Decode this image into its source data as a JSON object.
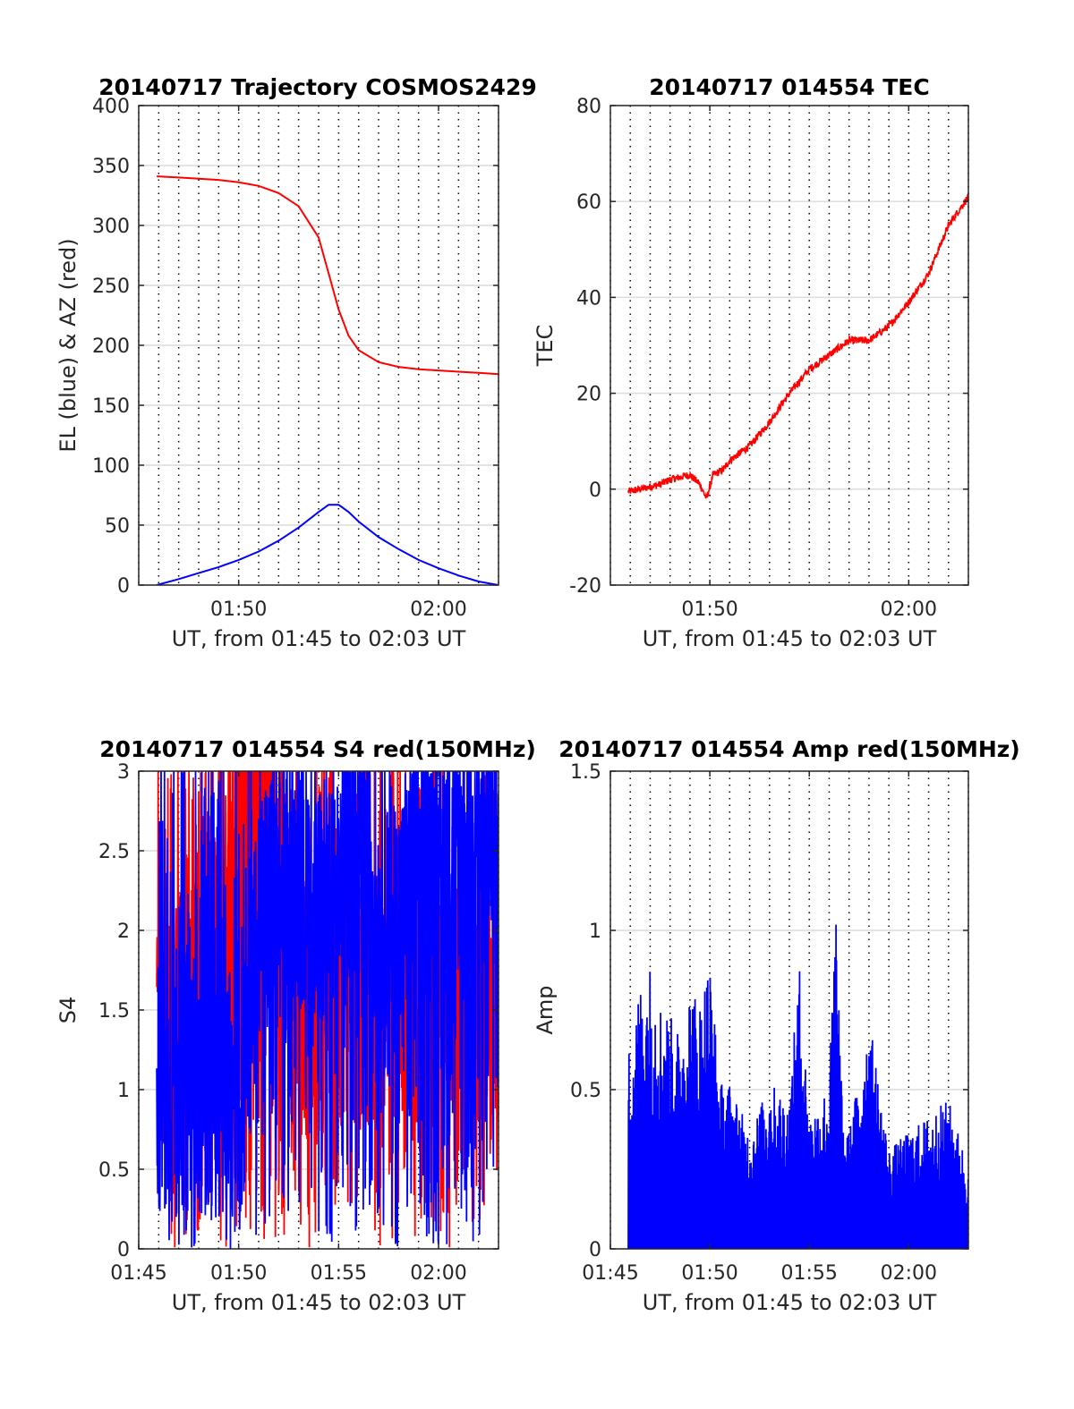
{
  "figure": {
    "background": "#ffffff"
  },
  "chart_data": [
    {
      "type": "line",
      "title": "20140717 Trajectory COSMOS2429",
      "xlabel": "UT, from 01:45 to 02:03 UT",
      "ylabel": "EL (blue) & AZ (red)",
      "xlim": [
        "01:45",
        "02:03"
      ],
      "ylim": [
        0,
        400
      ],
      "xticks": [
        "01:50",
        "02:00"
      ],
      "yticks": [
        "0",
        "50",
        "100",
        "150",
        "200",
        "250",
        "300",
        "350",
        "400"
      ],
      "grid": true,
      "series": [
        {
          "color": "#ff0000",
          "x": [
            "01:45:54",
            "01:47",
            "01:48",
            "01:49",
            "01:50",
            "01:51",
            "01:52",
            "01:53",
            "01:54",
            "01:54:30",
            "01:55",
            "01:55:30",
            "01:56",
            "01:57",
            "01:58",
            "01:59",
            "02:00",
            "02:01",
            "02:02",
            "02:03"
          ],
          "values": [
            341,
            340,
            339,
            338,
            336,
            333,
            327,
            316,
            290,
            260,
            230,
            208,
            196,
            186,
            182,
            180,
            179,
            178,
            177,
            176
          ]
        },
        {
          "color": "#0000ff",
          "x": [
            "01:45:54",
            "01:47",
            "01:48",
            "01:49",
            "01:50",
            "01:51",
            "01:52",
            "01:53",
            "01:54",
            "01:54:30",
            "01:55",
            "01:55:30",
            "01:56",
            "01:57",
            "01:58",
            "01:59",
            "02:00",
            "02:01",
            "02:02",
            "02:03"
          ],
          "values": [
            0,
            5,
            10,
            15,
            21,
            28,
            37,
            48,
            61,
            67,
            67,
            61,
            53,
            40,
            30,
            21,
            14,
            8,
            3,
            0
          ]
        }
      ]
    },
    {
      "type": "line",
      "title": "20140717 014554 TEC",
      "xlabel": "UT, from 01:45 to 02:03 UT",
      "ylabel": "TEC",
      "xlim": [
        "01:45",
        "02:03"
      ],
      "ylim": [
        -20,
        80
      ],
      "xticks": [
        "01:50",
        "02:00"
      ],
      "yticks": [
        "-20",
        "0",
        "20",
        "40",
        "60",
        "80"
      ],
      "grid": true,
      "series": [
        {
          "color": "#ff0000",
          "x": [
            "01:45:54",
            "01:46:30",
            "01:47",
            "01:47:30",
            "01:48",
            "01:48:30",
            "01:49",
            "01:49:30",
            "01:49:50",
            "01:50:10",
            "01:50:40",
            "01:51",
            "01:52",
            "01:53",
            "01:54",
            "01:55",
            "01:56",
            "01:57",
            "01:58",
            "01:59",
            "02:00",
            "02:01",
            "02:02",
            "02:03"
          ],
          "values": [
            -0.5,
            0,
            0.5,
            1,
            2,
            2.5,
            3,
            1,
            -2,
            3,
            4,
            6,
            9,
            14,
            20,
            25,
            28,
            31,
            31,
            34,
            39,
            45,
            55,
            61
          ]
        }
      ]
    },
    {
      "type": "line",
      "title": "20140717 014554 S4 red(150MHz)",
      "xlabel": "UT, from 01:45 to 02:03 UT",
      "ylabel": "S4",
      "xlim": [
        "01:45",
        "02:03"
      ],
      "ylim": [
        0,
        3
      ],
      "xticks": [
        "01:45",
        "01:50",
        "01:55",
        "02:00"
      ],
      "yticks": [
        "0",
        "0.5",
        "1",
        "1.5",
        "2",
        "2.5",
        "3"
      ],
      "grid": true,
      "series": [
        {
          "color": "#ff0000",
          "x": [
            "01:45:54",
            "01:46:30",
            "01:47",
            "01:47:30",
            "01:48",
            "01:48:30",
            "01:49",
            "01:49:30",
            "01:50",
            "01:51",
            "01:52",
            "01:53",
            "01:54",
            "01:55",
            "01:56",
            "01:57",
            "01:58",
            "01:59",
            "02:00",
            "02:01",
            "02:02",
            "02:03"
          ],
          "values": [
            1.5,
            1.5,
            1.6,
            1.8,
            1.7,
            1.9,
            2.1,
            2.5,
            3,
            3,
            2.8,
            1.5,
            1.6,
            1.7,
            1.5,
            1.6,
            1.5,
            1.6,
            1.7,
            1.6,
            1.5,
            1.6
          ]
        },
        {
          "color": "#0000ff",
          "x": [
            "01:45:54",
            "01:46:30",
            "01:47",
            "01:47:30",
            "01:48",
            "01:48:30",
            "01:49",
            "01:49:30",
            "01:50",
            "01:51",
            "01:52",
            "01:53",
            "01:54",
            "01:55",
            "01:56",
            "01:57",
            "01:58",
            "01:59",
            "02:00",
            "02:01",
            "02:02",
            "02:03"
          ],
          "values": [
            1,
            1,
            1.05,
            1,
            1,
            0.95,
            1,
            0.9,
            0.8,
            2,
            2.5,
            2.3,
            2.2,
            2.4,
            2.6,
            2.2,
            2.0,
            2.5,
            2.6,
            2.7,
            2.7,
            2.8
          ]
        }
      ]
    },
    {
      "type": "line",
      "title": "20140717 014554 Amp red(150MHz)",
      "xlabel": "UT, from 01:45 to 02:03 UT",
      "ylabel": "Amp",
      "xlim": [
        "01:45",
        "02:03"
      ],
      "ylim": [
        0,
        1.5
      ],
      "xticks": [
        "01:45",
        "01:50",
        "01:55",
        "02:00"
      ],
      "yticks": [
        "0",
        "0.5",
        "1",
        "1.5"
      ],
      "grid": true,
      "series": [
        {
          "color": "#0000ff",
          "x": [
            "01:45:54",
            "01:46:30",
            "01:47",
            "01:47:30",
            "01:48",
            "01:48:30",
            "01:49",
            "01:49:30",
            "01:50",
            "01:50:30",
            "01:51",
            "01:52",
            "01:53",
            "01:54",
            "01:54:30",
            "01:55",
            "01:56",
            "01:56:20",
            "01:56:40",
            "01:57",
            "01:58",
            "01:59",
            "02:00",
            "02:01",
            "02:02",
            "02:03"
          ],
          "values": [
            0.6,
            0.8,
            0.86,
            0.75,
            0.7,
            0.65,
            0.8,
            0.75,
            0.88,
            0.5,
            0.5,
            0.35,
            0.5,
            0.45,
            0.86,
            0.4,
            0.5,
            1.08,
            0.4,
            0.35,
            0.7,
            0.3,
            0.35,
            0.4,
            0.45,
            0.25
          ]
        }
      ]
    }
  ]
}
